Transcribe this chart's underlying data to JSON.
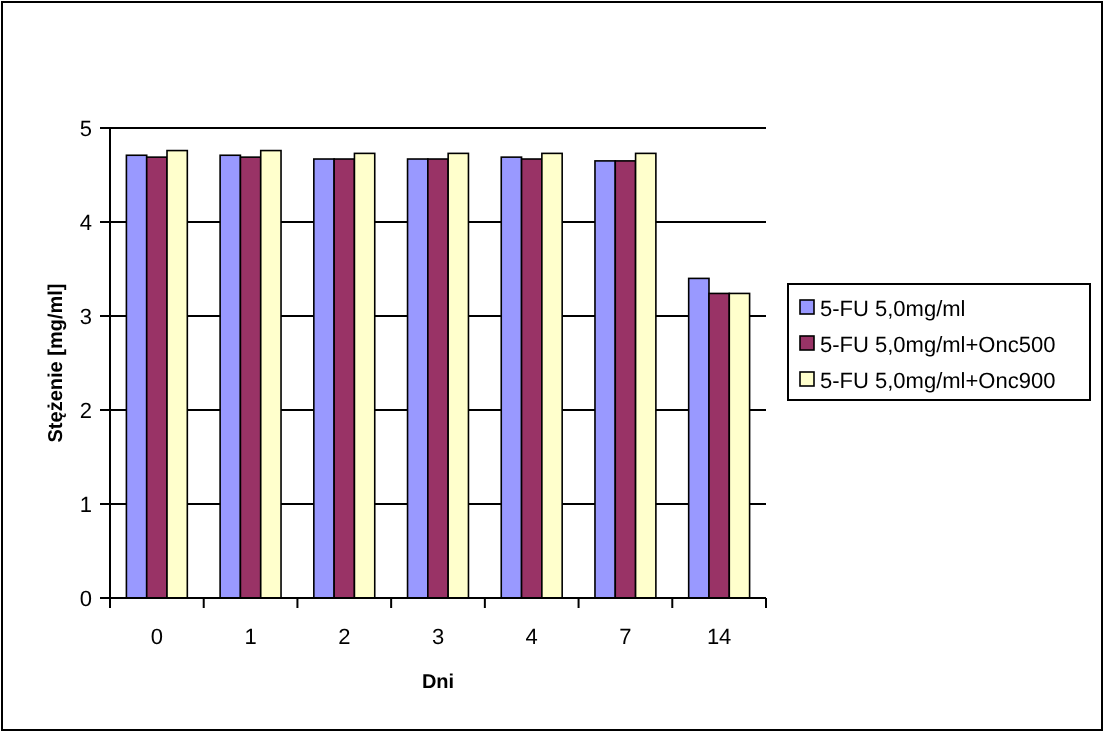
{
  "chart_data": {
    "type": "bar",
    "xlabel": "Dni",
    "ylabel": "Stężenie [mg/ml]",
    "categories": [
      "0",
      "1",
      "2",
      "3",
      "4",
      "7",
      "14"
    ],
    "series": [
      {
        "name": "5-FU 5,0mg/ml",
        "color": "#9999ff",
        "values": [
          4.71,
          4.71,
          4.67,
          4.67,
          4.69,
          4.65,
          3.4
        ]
      },
      {
        "name": "5-FU 5,0mg/ml+Onc500",
        "color": "#993366",
        "values": [
          4.69,
          4.69,
          4.67,
          4.67,
          4.67,
          4.65,
          3.24
        ]
      },
      {
        "name": "5-FU 5,0mg/ml+Onc900",
        "color": "#ffffcc",
        "values": [
          4.76,
          4.76,
          4.73,
          4.73,
          4.73,
          4.73,
          3.24
        ]
      }
    ],
    "ylim": [
      0,
      5
    ],
    "yticks": [
      0,
      1,
      2,
      3,
      4,
      5
    ],
    "grid": "y",
    "legend": "right"
  }
}
